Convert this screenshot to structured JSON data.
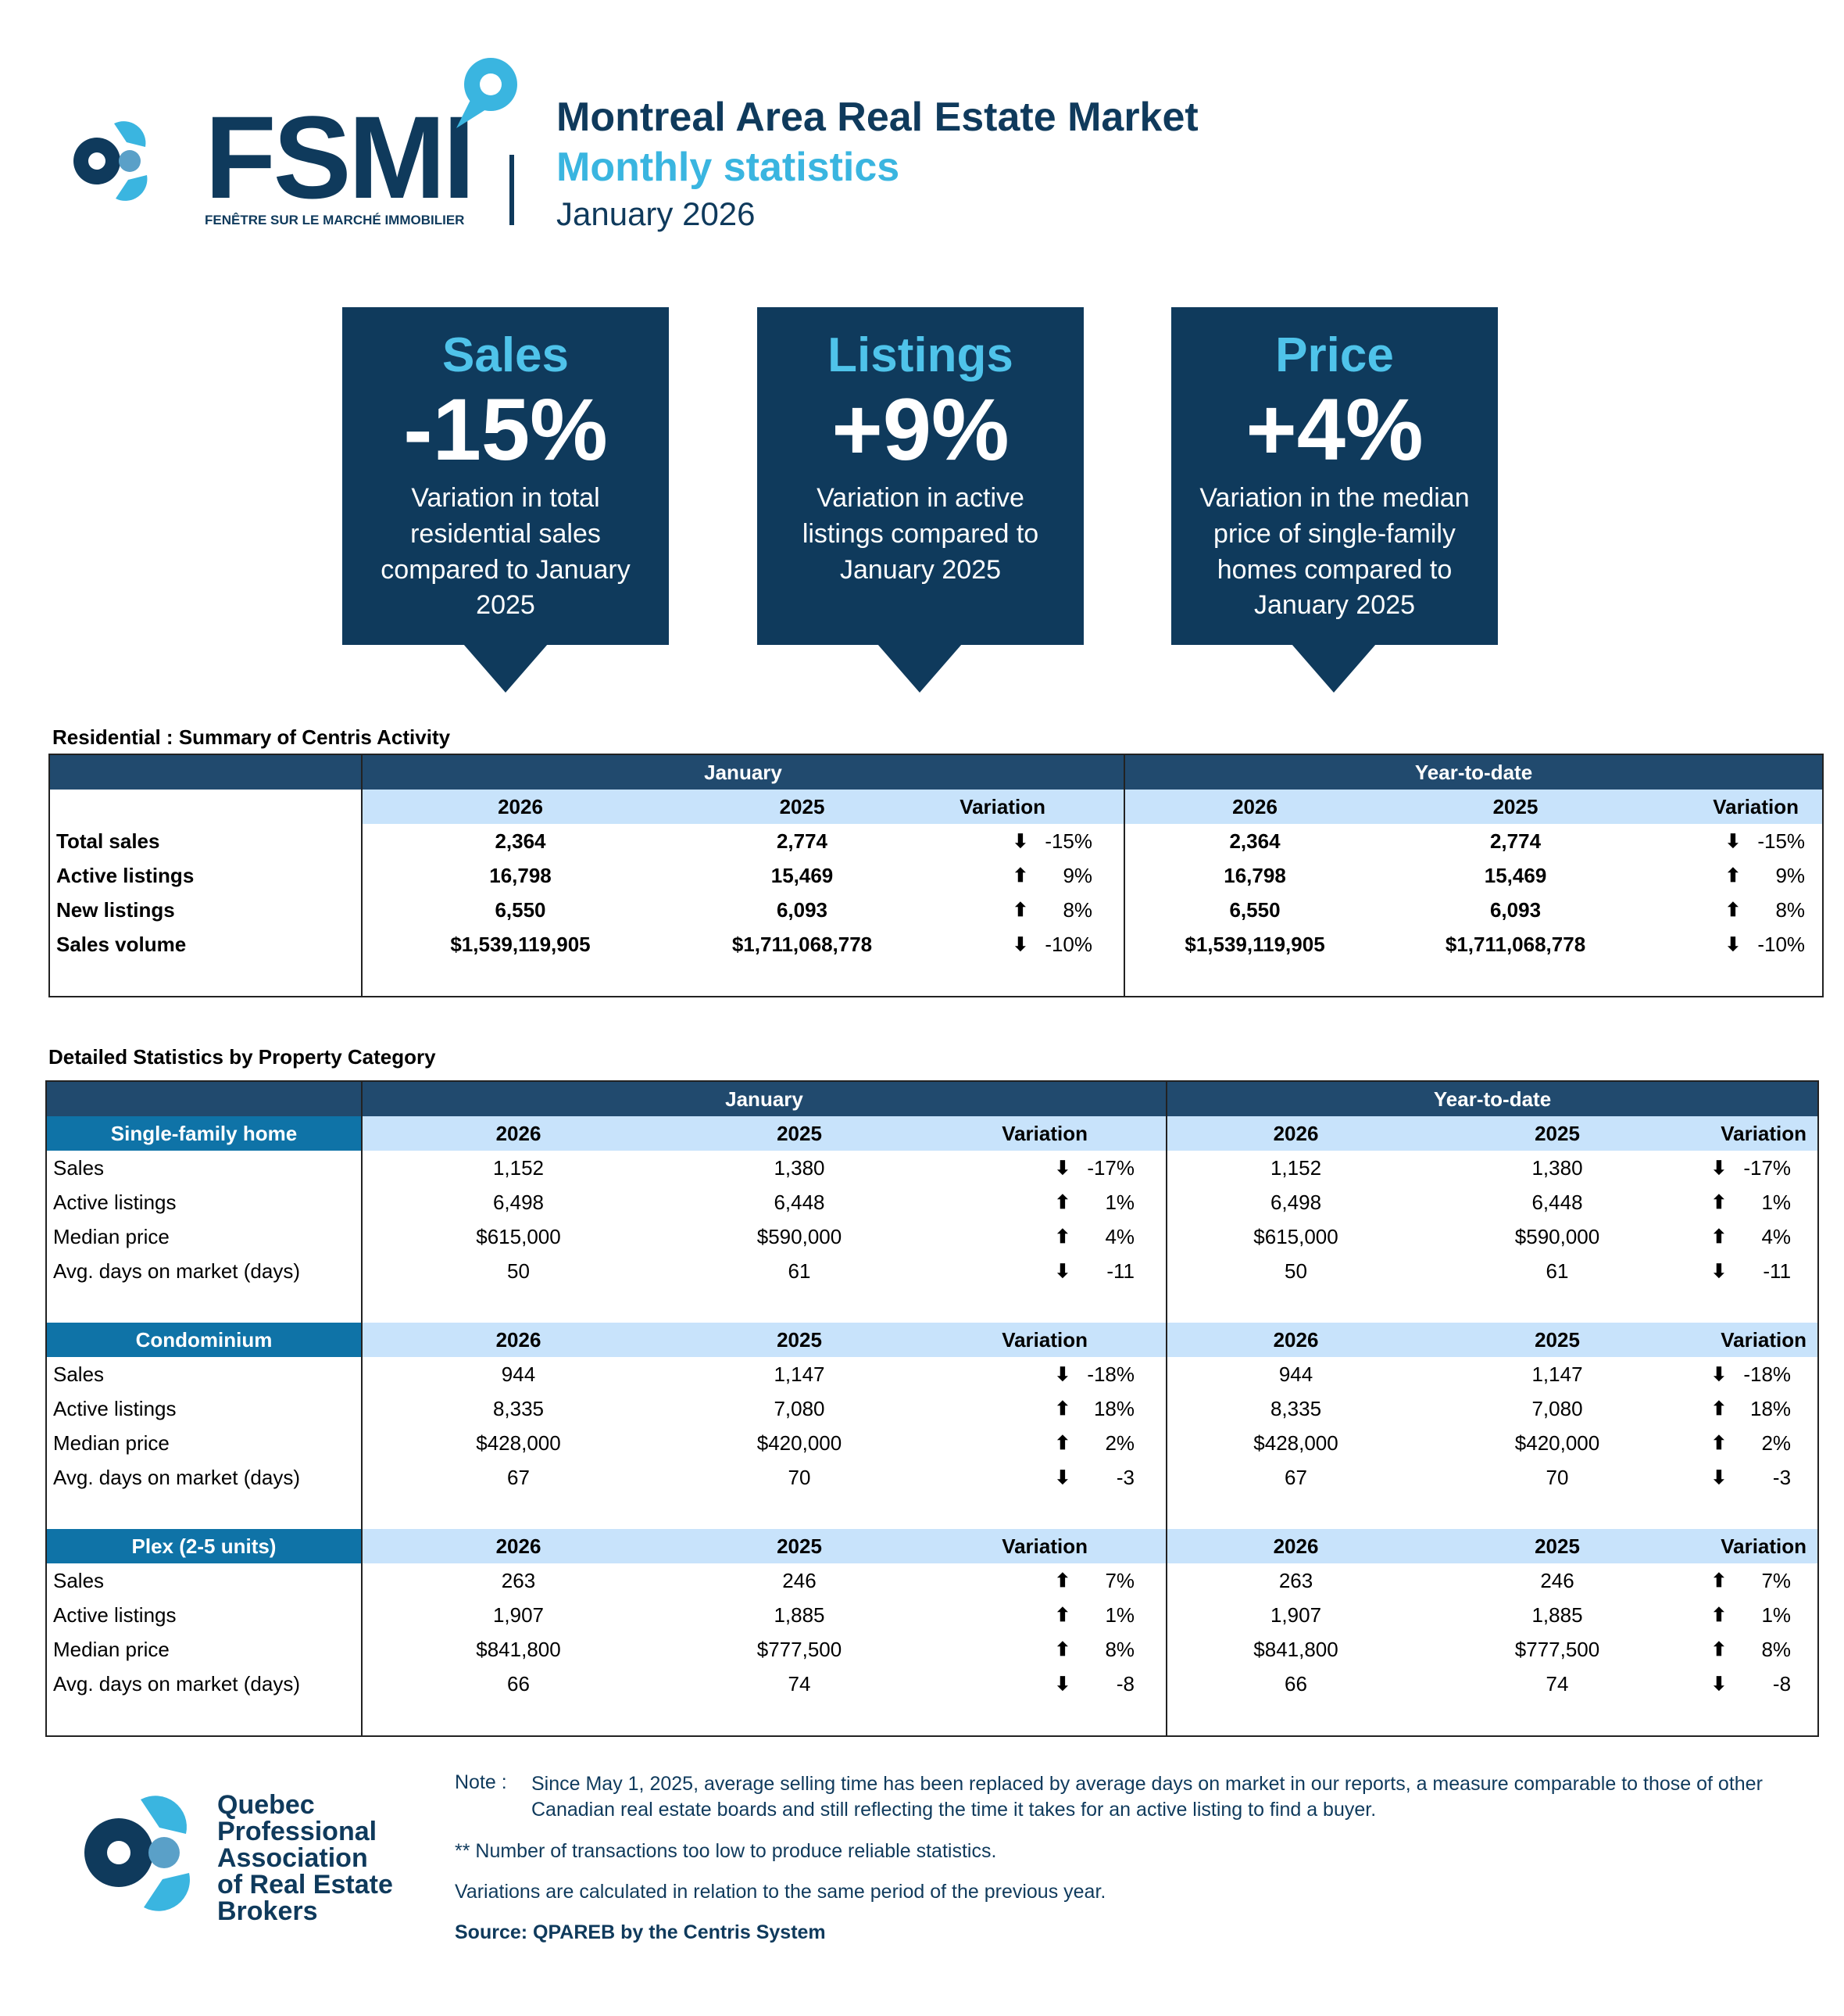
{
  "header": {
    "logo_word": "FSMI",
    "logo_subtitle": "FENÊTRE SUR LE MARCHÉ IMMOBILIER",
    "title": "Montreal Area Real Estate Market",
    "subtitle": "Monthly statistics",
    "period": "January 2026"
  },
  "kpis": [
    {
      "title": "Sales",
      "value": "-15%",
      "desc": "Variation in total residential sales compared to January 2025"
    },
    {
      "title": "Listings",
      "value": "+9%",
      "desc": "Variation in active listings compared to January 2025"
    },
    {
      "title": "Price",
      "value": "+4%",
      "desc": "Variation in the median price of single-family homes compared to January 2025"
    }
  ],
  "summary": {
    "section_title": "Residential : Summary of Centris Activity",
    "period_headers": [
      "January",
      "Year-to-date"
    ],
    "col_headers": [
      "2026",
      "2025",
      "Variation"
    ],
    "rows": [
      {
        "label": "Total sales",
        "m26": "2,364",
        "m25": "2,774",
        "mdir": "down",
        "mvar": "-15%",
        "y26": "2,364",
        "y25": "2,774",
        "ydir": "down",
        "yvar": "-15%"
      },
      {
        "label": "Active listings",
        "m26": "16,798",
        "m25": "15,469",
        "mdir": "up",
        "mvar": "9%",
        "y26": "16,798",
        "y25": "15,469",
        "ydir": "up",
        "yvar": "9%"
      },
      {
        "label": "New listings",
        "m26": "6,550",
        "m25": "6,093",
        "mdir": "up",
        "mvar": "8%",
        "y26": "6,550",
        "y25": "6,093",
        "ydir": "up",
        "yvar": "8%"
      },
      {
        "label": "Sales volume",
        "m26": "$1,539,119,905",
        "m25": "$1,711,068,778",
        "mdir": "down",
        "mvar": "-10%",
        "y26": "$1,539,119,905",
        "y25": "$1,711,068,778",
        "ydir": "down",
        "yvar": "-10%"
      }
    ]
  },
  "detailed": {
    "section_title": "Detailed Statistics by Property Category",
    "period_headers": [
      "January",
      "Year-to-date"
    ],
    "col_headers": [
      "2026",
      "2025",
      "Variation"
    ],
    "categories": [
      {
        "name": "Single-family home",
        "rows": [
          {
            "label": "Sales",
            "m26": "1,152",
            "m25": "1,380",
            "mdir": "down",
            "mvar": "-17%",
            "y26": "1,152",
            "y25": "1,380",
            "ydir": "down",
            "yvar": "-17%"
          },
          {
            "label": "Active listings",
            "m26": "6,498",
            "m25": "6,448",
            "mdir": "up",
            "mvar": "1%",
            "y26": "6,498",
            "y25": "6,448",
            "ydir": "up",
            "yvar": "1%"
          },
          {
            "label": "Median price",
            "m26": "$615,000",
            "m25": "$590,000",
            "mdir": "up",
            "mvar": "4%",
            "y26": "$615,000",
            "y25": "$590,000",
            "ydir": "up",
            "yvar": "4%"
          },
          {
            "label": "Avg. days on market (days)",
            "m26": "50",
            "m25": "61",
            "mdir": "down",
            "mvar": "-11",
            "y26": "50",
            "y25": "61",
            "ydir": "down",
            "yvar": "-11"
          }
        ]
      },
      {
        "name": "Condominium",
        "rows": [
          {
            "label": "Sales",
            "m26": "944",
            "m25": "1,147",
            "mdir": "down",
            "mvar": "-18%",
            "y26": "944",
            "y25": "1,147",
            "ydir": "down",
            "yvar": "-18%"
          },
          {
            "label": "Active listings",
            "m26": "8,335",
            "m25": "7,080",
            "mdir": "up",
            "mvar": "18%",
            "y26": "8,335",
            "y25": "7,080",
            "ydir": "up",
            "yvar": "18%"
          },
          {
            "label": "Median price",
            "m26": "$428,000",
            "m25": "$420,000",
            "mdir": "up",
            "mvar": "2%",
            "y26": "$428,000",
            "y25": "$420,000",
            "ydir": "up",
            "yvar": "2%"
          },
          {
            "label": "Avg. days on market (days)",
            "m26": "67",
            "m25": "70",
            "mdir": "down",
            "mvar": "-3",
            "y26": "67",
            "y25": "70",
            "ydir": "down",
            "yvar": "-3"
          }
        ]
      },
      {
        "name": "Plex (2-5 units)",
        "rows": [
          {
            "label": "Sales",
            "m26": "263",
            "m25": "246",
            "mdir": "up",
            "mvar": "7%",
            "y26": "263",
            "y25": "246",
            "ydir": "up",
            "yvar": "7%"
          },
          {
            "label": "Active listings",
            "m26": "1,907",
            "m25": "1,885",
            "mdir": "up",
            "mvar": "1%",
            "y26": "1,907",
            "y25": "1,885",
            "ydir": "up",
            "yvar": "1%"
          },
          {
            "label": "Median price",
            "m26": "$841,800",
            "m25": "$777,500",
            "mdir": "up",
            "mvar": "8%",
            "y26": "$841,800",
            "y25": "$777,500",
            "ydir": "up",
            "yvar": "8%"
          },
          {
            "label": "Avg. days on market (days)",
            "m26": "66",
            "m25": "74",
            "mdir": "down",
            "mvar": "-8",
            "y26": "66",
            "y25": "74",
            "ydir": "down",
            "yvar": "-8"
          }
        ]
      }
    ]
  },
  "footer": {
    "org_name_lines": [
      "Quebec",
      "Professional",
      "Association",
      "of Real Estate",
      "Brokers"
    ],
    "note_label": "Note :",
    "note_text": "Since May 1, 2025, average selling time has been replaced by average days on market in our reports, a measure comparable to those of other Canadian real estate boards and still reflecting the time it takes for an active listing to find a buyer.",
    "note2": "**  Number of transactions too low to produce reliable statistics.",
    "note3": "Variations are calculated in relation to the same period of the previous year.",
    "source": "Source: QPAREB by the Centris System"
  },
  "colors": {
    "navy": "#0f3a5c",
    "accent": "#3ab5e0",
    "header_bar": "#214a6e",
    "subheader": "#c8e3fb",
    "category": "#0f73a7"
  }
}
